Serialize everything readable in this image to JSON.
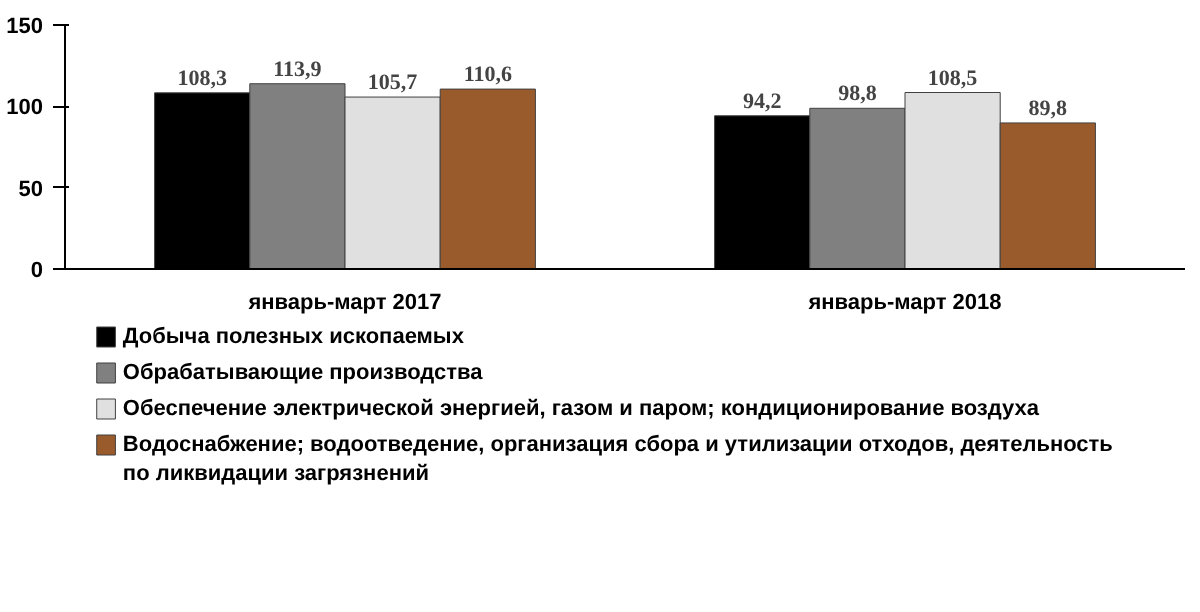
{
  "chart_data": {
    "type": "bar",
    "categories": [
      "январь-март 2017",
      "январь-март 2018"
    ],
    "series": [
      {
        "name": "Добыча полезных ископаемых",
        "color": "#000000",
        "values": [
          108.3,
          94.2
        ],
        "value_labels": [
          "108,3",
          "94,2"
        ]
      },
      {
        "name": "Обрабатывающие производства",
        "color": "#808080",
        "values": [
          113.9,
          98.8
        ],
        "value_labels": [
          "113,9",
          "98,8"
        ]
      },
      {
        "name": "Обеспечение электрической энергией, газом и паром; кондиционирование воздуха",
        "color": "#e0e0e0",
        "values": [
          105.7,
          108.5
        ],
        "value_labels": [
          "105,7",
          "108,5"
        ]
      },
      {
        "name": "Водоснабжение; водоотведение, организация сбора и утилизации отходов, деятельность по ликвидации загрязнений",
        "color": "#9a5b2c",
        "values": [
          110.6,
          89.8
        ],
        "value_labels": [
          "110,6",
          "89,8"
        ]
      }
    ],
    "ylim": [
      0,
      150
    ],
    "yticks": [
      0,
      50,
      100,
      150
    ],
    "grid": false,
    "legend": "bottom"
  }
}
